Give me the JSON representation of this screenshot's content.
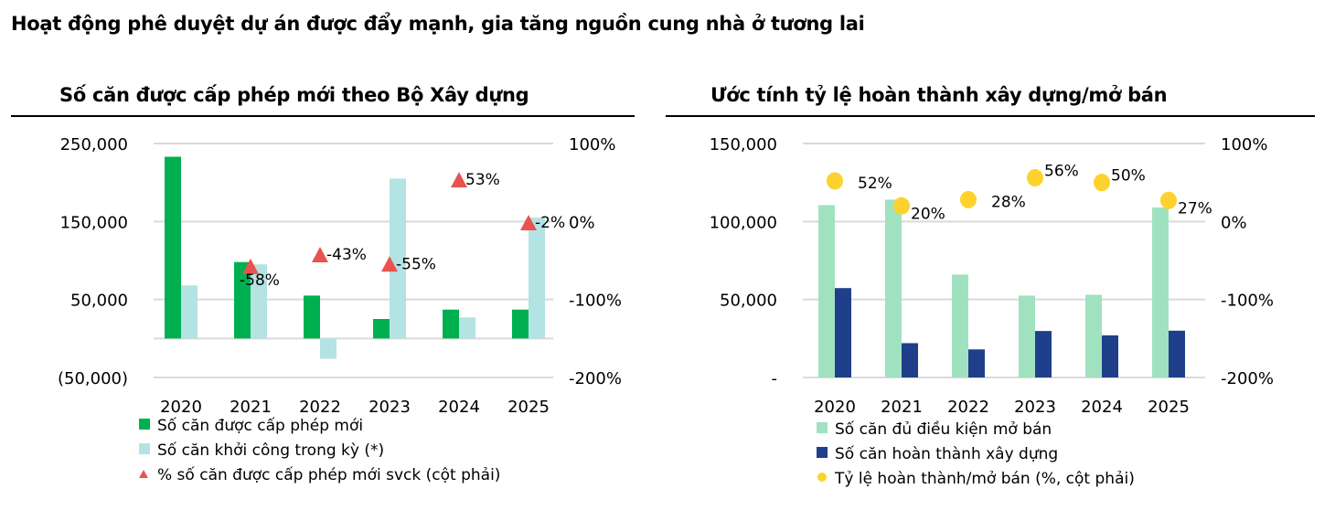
{
  "title": "Hoạt động phê duyệt dự án được đẩy mạnh, gia tăng nguồn cung nhà ở tương lai",
  "chart_data": [
    {
      "type": "bar",
      "title": "Số căn được cấp phép mới theo Bộ Xây dựng",
      "categories": [
        "2020",
        "2021",
        "2022",
        "2023",
        "2024",
        "2025"
      ],
      "ylim": [
        -50000,
        250000
      ],
      "yticks": [
        250000,
        150000,
        50000,
        -50000
      ],
      "ytick_labels": [
        "250,000",
        "150,000",
        "50,000",
        "(50,000)"
      ],
      "y2lim": [
        -200,
        100
      ],
      "y2tick_labels": [
        "100%",
        "0%",
        "-100%",
        "-200%"
      ],
      "grid": true,
      "legend_position": "bottom-left",
      "series": [
        {
          "name": "Số căn được cấp phép mới",
          "kind": "bar",
          "color": "#00b050",
          "values": [
            233000,
            98000,
            55000,
            25000,
            37000,
            37000
          ]
        },
        {
          "name": "Số căn khởi công trong kỳ (*)",
          "kind": "bar",
          "color": "#b4e3e3",
          "values": [
            68000,
            95000,
            -26000,
            205000,
            27000,
            155000
          ]
        },
        {
          "name": "% số căn được cấp phép mới svck (cột phải)",
          "kind": "triangle",
          "axis": "right",
          "color": "#e8534f",
          "values": [
            null,
            -58,
            -43,
            -55,
            53,
            -2
          ],
          "labels": [
            "",
            "-58%",
            "-43%",
            "-55%",
            "53%",
            "-2%"
          ]
        }
      ]
    },
    {
      "type": "bar",
      "title": "Ước tính tỷ lệ hoàn thành xây dựng/mở bán",
      "categories": [
        "2020",
        "2021",
        "2022",
        "2023",
        "2024",
        "2025"
      ],
      "ylim": [
        0,
        150000
      ],
      "yticks": [
        150000,
        100000,
        50000,
        0
      ],
      "ytick_labels": [
        "150,000",
        "100,000",
        "50,000",
        "-"
      ],
      "y2lim": [
        -200,
        100
      ],
      "y2tick_labels": [
        "100%",
        "0%",
        "-100%",
        "-200%"
      ],
      "grid": true,
      "legend_position": "bottom-left",
      "series": [
        {
          "name": "Số căn đủ điều kiện mở bán",
          "kind": "bar",
          "color": "#a0e2bf",
          "values": [
            110500,
            114000,
            66000,
            52500,
            53000,
            109000
          ]
        },
        {
          "name": "Số căn hoàn thành xây dựng",
          "kind": "bar",
          "color": "#1f3f8a",
          "values": [
            57300,
            22000,
            18000,
            29800,
            27000,
            30000
          ]
        },
        {
          "name": "Tỷ lệ hoàn thành/mở bán (%, cột phải)",
          "kind": "dot",
          "axis": "right",
          "color": "#fdd22f",
          "values": [
            52,
            20,
            28,
            56,
            50,
            27
          ],
          "labels": [
            "52%",
            "20%",
            "28%",
            "56%",
            "50%",
            "27%"
          ]
        }
      ]
    }
  ]
}
